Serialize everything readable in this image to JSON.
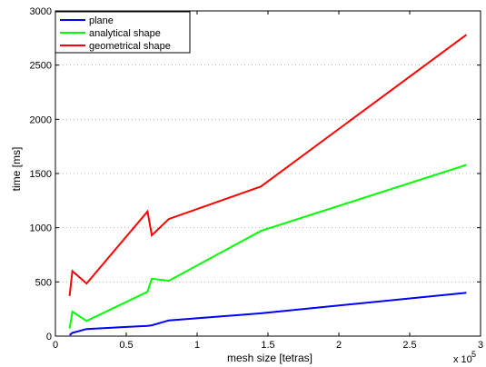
{
  "chart_data": {
    "type": "line",
    "title": "",
    "xlabel": "mesh size [tetras]",
    "ylabel": "time [ms]",
    "x_multiplier_label": "x 10",
    "x_multiplier_exponent": "5",
    "xlim": [
      0,
      3
    ],
    "ylim": [
      0,
      3000
    ],
    "x_ticks": [
      0,
      0.5,
      1,
      1.5,
      2,
      2.5,
      3
    ],
    "x_tick_labels": [
      "0",
      "0.5",
      "1",
      "1.5",
      "2",
      "2.5",
      "3"
    ],
    "y_ticks": [
      0,
      500,
      1000,
      1500,
      2000,
      2500,
      3000
    ],
    "y_tick_labels": [
      "0",
      "500",
      "1000",
      "1500",
      "2000",
      "2500",
      "3000"
    ],
    "grid": "horizontal dotted",
    "legend_position": "top-left",
    "series": [
      {
        "name": "plane",
        "color": "#0000ff",
        "x": [
          0.1,
          0.12,
          0.22,
          0.65,
          0.68,
          0.8,
          1.45,
          2.9
        ],
        "y": [
          10,
          30,
          65,
          95,
          100,
          145,
          210,
          400
        ]
      },
      {
        "name": "analytical shape",
        "color": "#00ff00",
        "x": [
          0.1,
          0.12,
          0.22,
          0.65,
          0.68,
          0.8,
          1.45,
          2.9
        ],
        "y": [
          70,
          225,
          140,
          410,
          530,
          510,
          970,
          1580
        ]
      },
      {
        "name": "geometrical shape",
        "color": "#ff0000",
        "x": [
          0.1,
          0.12,
          0.22,
          0.65,
          0.68,
          0.8,
          1.45,
          2.9
        ],
        "y": [
          370,
          600,
          485,
          1150,
          930,
          1080,
          1380,
          2780
        ]
      }
    ]
  }
}
